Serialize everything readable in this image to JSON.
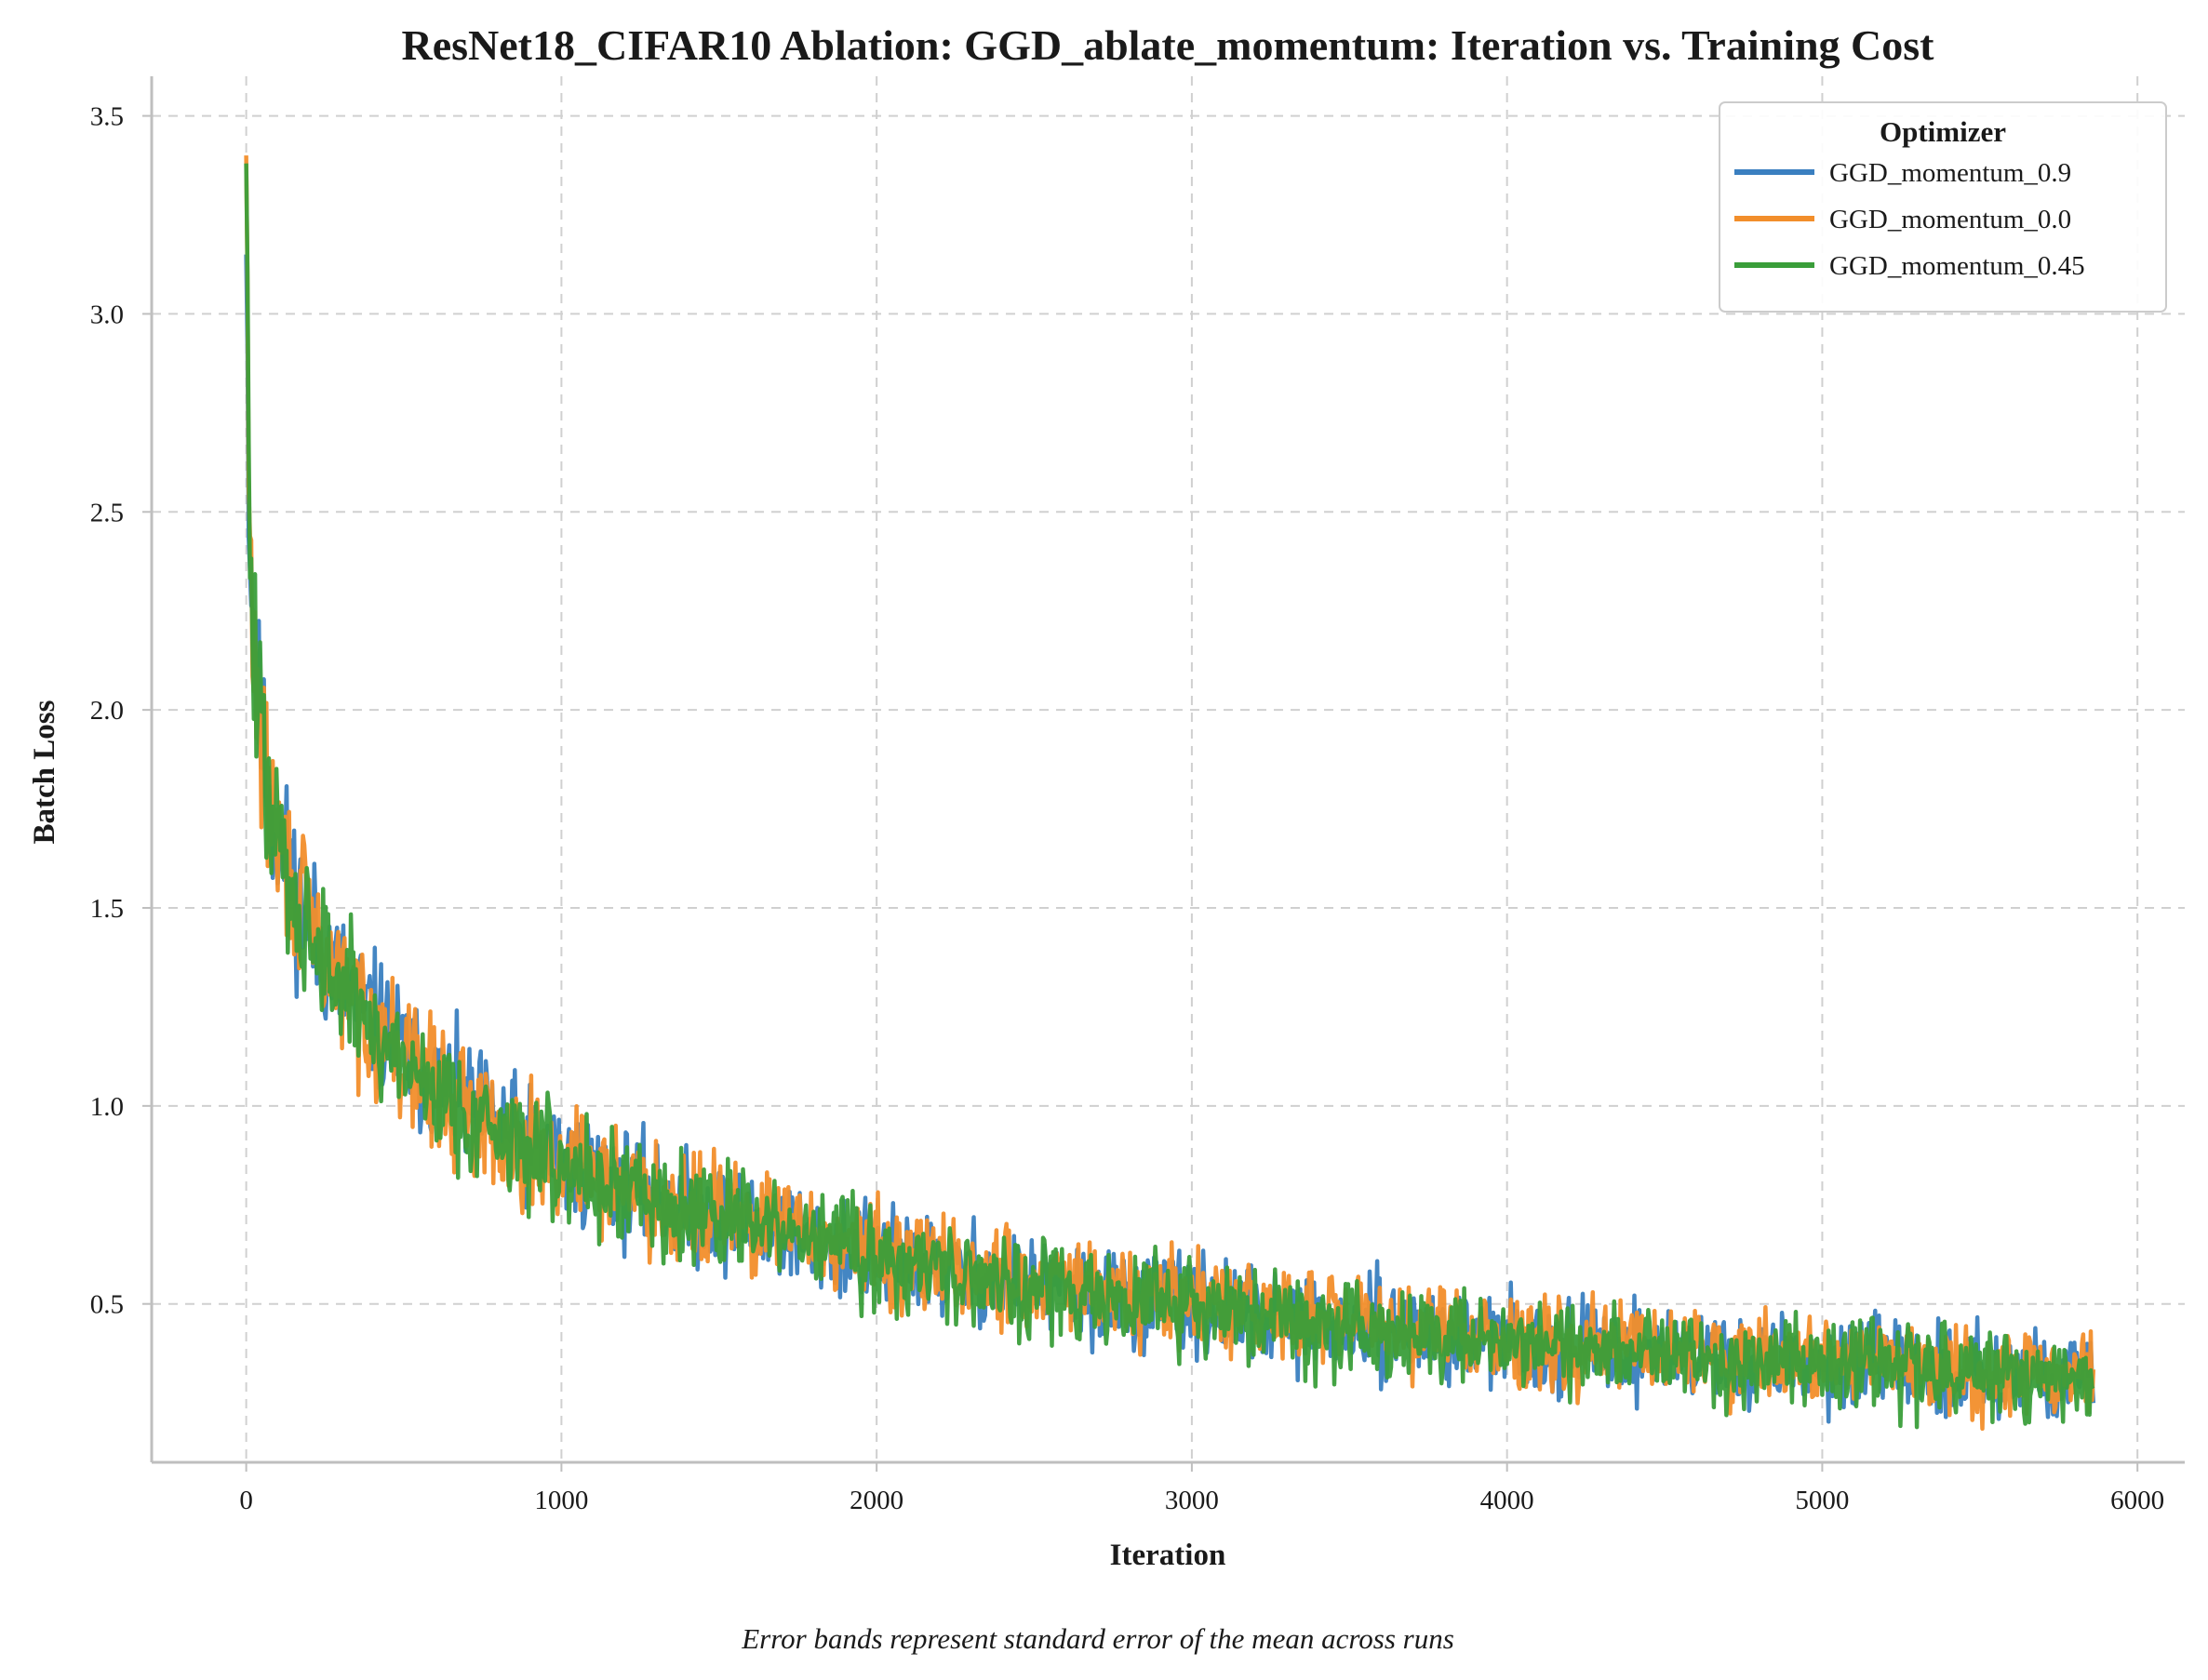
{
  "chart_data": {
    "type": "line",
    "title": "ResNet18_CIFAR10 Ablation: GGD_ablate_momentum: Iteration vs. Training Cost",
    "xlabel": "Iteration",
    "ylabel": "Batch Loss",
    "xlim": [
      -300,
      6150
    ],
    "ylim": [
      0.1,
      3.6
    ],
    "xticks": [
      0,
      1000,
      2000,
      3000,
      4000,
      5000,
      6000
    ],
    "xtick_labels": [
      "0",
      "1000",
      "2000",
      "3000",
      "4000",
      "5000",
      "6000"
    ],
    "yticks": [
      0.5,
      1.0,
      1.5,
      2.0,
      2.5,
      3.0,
      3.5
    ],
    "ytick_labels": [
      "0.5",
      "1.0",
      "1.5",
      "2.0",
      "2.5",
      "3.0",
      "3.5"
    ],
    "grid": true,
    "legend": {
      "title": "Optimizer",
      "placement": "top-right"
    },
    "footnote": "Error bands represent standard error of the mean across runs",
    "series": [
      {
        "name": "GGD_momentum_0.9",
        "color": "#3a7fc0",
        "x": [
          0,
          10,
          20,
          40,
          60,
          80,
          100,
          150,
          200,
          250,
          300,
          400,
          500,
          600,
          700,
          800,
          900,
          1000,
          1200,
          1400,
          1600,
          1800,
          2000,
          2200,
          2400,
          2600,
          2800,
          3000,
          3200,
          3400,
          3600,
          3800,
          4000,
          4200,
          4400,
          4600,
          4800,
          5000,
          5200,
          5400,
          5600,
          5860
        ],
        "y": [
          3.15,
          2.45,
          2.25,
          2.0,
          1.85,
          1.75,
          1.68,
          1.56,
          1.45,
          1.38,
          1.32,
          1.22,
          1.13,
          1.06,
          1.0,
          0.95,
          0.9,
          0.86,
          0.8,
          0.74,
          0.7,
          0.66,
          0.62,
          0.59,
          0.56,
          0.53,
          0.51,
          0.49,
          0.47,
          0.45,
          0.44,
          0.42,
          0.41,
          0.39,
          0.38,
          0.37,
          0.36,
          0.35,
          0.34,
          0.33,
          0.32,
          0.31
        ]
      },
      {
        "name": "GGD_momentum_0.0",
        "color": "#f28e2b",
        "x": [
          0,
          10,
          20,
          40,
          60,
          80,
          100,
          150,
          200,
          250,
          300,
          400,
          500,
          600,
          700,
          800,
          900,
          1000,
          1200,
          1400,
          1600,
          1800,
          2000,
          2200,
          2400,
          2600,
          2800,
          3000,
          3200,
          3400,
          3600,
          3800,
          4000,
          4200,
          4400,
          4600,
          4800,
          5000,
          5200,
          5400,
          5600,
          5860
        ],
        "y": [
          3.4,
          2.4,
          2.22,
          1.98,
          1.84,
          1.74,
          1.67,
          1.55,
          1.45,
          1.37,
          1.31,
          1.21,
          1.12,
          1.05,
          0.99,
          0.94,
          0.9,
          0.86,
          0.8,
          0.75,
          0.71,
          0.67,
          0.63,
          0.6,
          0.57,
          0.54,
          0.52,
          0.5,
          0.48,
          0.46,
          0.45,
          0.43,
          0.42,
          0.4,
          0.39,
          0.38,
          0.37,
          0.36,
          0.35,
          0.34,
          0.33,
          0.32
        ]
      },
      {
        "name": "GGD_momentum_0.45",
        "color": "#3a9e3a",
        "x": [
          0,
          10,
          20,
          40,
          60,
          80,
          100,
          150,
          200,
          250,
          300,
          400,
          500,
          600,
          700,
          800,
          900,
          1000,
          1200,
          1400,
          1600,
          1800,
          2000,
          2200,
          2400,
          2600,
          2800,
          3000,
          3200,
          3400,
          3600,
          3800,
          4000,
          4200,
          4400,
          4600,
          4800,
          5000,
          5200,
          5400,
          5600,
          5860
        ],
        "y": [
          3.38,
          2.42,
          2.2,
          1.97,
          1.83,
          1.73,
          1.66,
          1.54,
          1.44,
          1.36,
          1.3,
          1.2,
          1.11,
          1.04,
          0.98,
          0.93,
          0.89,
          0.85,
          0.79,
          0.74,
          0.7,
          0.66,
          0.62,
          0.59,
          0.56,
          0.53,
          0.51,
          0.49,
          0.47,
          0.45,
          0.44,
          0.42,
          0.41,
          0.39,
          0.38,
          0.37,
          0.36,
          0.35,
          0.34,
          0.33,
          0.32,
          0.31
        ]
      }
    ]
  }
}
